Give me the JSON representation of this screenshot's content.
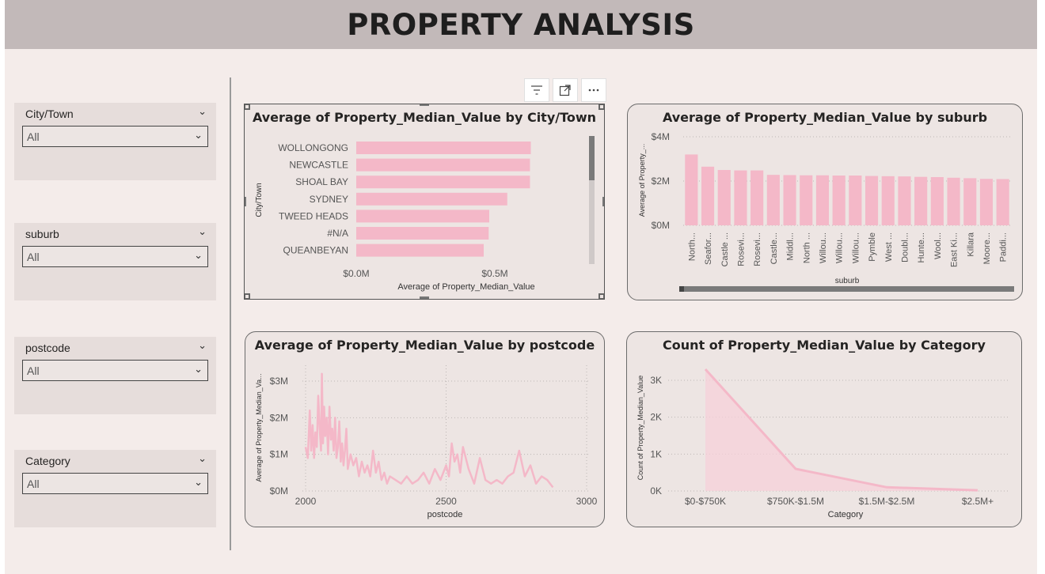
{
  "header": {
    "title": "PROPERTY ANALYSIS"
  },
  "slicers": [
    {
      "label": "City/Town",
      "value": "All"
    },
    {
      "label": "suburb",
      "value": "All"
    },
    {
      "label": "postcode",
      "value": "All"
    },
    {
      "label": "Category",
      "value": "All"
    }
  ],
  "colors": {
    "bar": "#f4b8c8",
    "line": "#f4b8c8",
    "area_fill": "#f5d0da",
    "header_bg": "#c2b9b9",
    "page_bg": "#f4ecea"
  },
  "icons": {
    "filter": "filter-icon",
    "focus": "focus-mode-icon",
    "more": "more-options-icon",
    "chevron": "chevron-down-icon"
  },
  "chart_data": [
    {
      "type": "bar",
      "orientation": "horizontal",
      "title": "Average of Property_Median_Value by City/Town",
      "xlabel": "Average of Property_Median_Value",
      "ylabel": "City/Town",
      "categories": [
        "WOLLONGONG",
        "NEWCASTLE",
        "SHOAL BAY",
        "SYDNEY",
        "TWEED HEADS",
        "#N/A",
        "QUEANBEYAN"
      ],
      "values": [
        630000,
        627000,
        627000,
        545000,
        480000,
        478000,
        460000
      ],
      "xticks": [
        "$0.0M",
        "$0.5M"
      ],
      "xlim": [
        0,
        800000
      ]
    },
    {
      "type": "bar",
      "title": "Average of Property_Median_Value by suburb",
      "xlabel": "suburb",
      "ylabel": "Average of Property_...",
      "categories": [
        "North...",
        "Seafor...",
        "Castle ...",
        "Rosevi...",
        "Rosevi...",
        "Castle...",
        "Middl...",
        "North ...",
        "Willou...",
        "Willou...",
        "Willou...",
        "Pymble",
        "West ...",
        "Doubl...",
        "Hunte...",
        "Wool...",
        "East Ki...",
        "Killara",
        "Moore...",
        "Paddi..."
      ],
      "values": [
        3200000,
        2650000,
        2500000,
        2480000,
        2480000,
        2280000,
        2270000,
        2260000,
        2260000,
        2250000,
        2250000,
        2230000,
        2220000,
        2210000,
        2190000,
        2180000,
        2150000,
        2130000,
        2100000,
        2090000
      ],
      "yticks": [
        "$0M",
        "$2M",
        "$4M"
      ],
      "ylim": [
        0,
        4000000
      ]
    },
    {
      "type": "line",
      "title": "Average of Property_Median_Value by postcode",
      "xlabel": "postcode",
      "ylabel": "Average of Property_Median_Va...",
      "x": [
        2000,
        2008,
        2015,
        2020,
        2025,
        2030,
        2035,
        2040,
        2045,
        2050,
        2055,
        2058,
        2062,
        2066,
        2070,
        2075,
        2080,
        2085,
        2090,
        2095,
        2100,
        2105,
        2110,
        2115,
        2120,
        2125,
        2130,
        2135,
        2140,
        2145,
        2150,
        2160,
        2170,
        2180,
        2190,
        2200,
        2210,
        2220,
        2230,
        2240,
        2250,
        2260,
        2270,
        2280,
        2290,
        2300,
        2320,
        2340,
        2360,
        2380,
        2400,
        2420,
        2440,
        2460,
        2480,
        2500,
        2510,
        2520,
        2530,
        2540,
        2550,
        2560,
        2580,
        2600,
        2620,
        2640,
        2660,
        2680,
        2700,
        2720,
        2740,
        2760,
        2780,
        2800,
        2820,
        2840,
        2860,
        2880
      ],
      "values": [
        1200000,
        900000,
        2200000,
        1100000,
        1800000,
        900000,
        1600000,
        1200000,
        2600000,
        1700000,
        1100000,
        3200000,
        1300000,
        2300000,
        1500000,
        2000000,
        1000000,
        2300000,
        1400000,
        1700000,
        1100000,
        2000000,
        900000,
        1200000,
        1900000,
        800000,
        1300000,
        700000,
        1100000,
        1700000,
        600000,
        1000000,
        700000,
        900000,
        400000,
        800000,
        500000,
        700000,
        400000,
        1100000,
        500000,
        800000,
        300000,
        500000,
        200000,
        400000,
        300000,
        200000,
        400000,
        200000,
        300000,
        500000,
        200000,
        600000,
        300000,
        700000,
        400000,
        1300000,
        800000,
        1000000,
        500000,
        1200000,
        600000,
        200000,
        900000,
        300000,
        200000,
        300000,
        200000,
        400000,
        500000,
        1100000,
        400000,
        700000,
        200000,
        400000,
        300000,
        100000
      ],
      "yticks": [
        "$0M",
        "$1M",
        "$2M",
        "$3M"
      ],
      "xticks": [
        "2000",
        "2500",
        "3000"
      ],
      "ylim": [
        0,
        3500000
      ],
      "xlim": [
        2000,
        3000
      ]
    },
    {
      "type": "area",
      "title": "Count of Property_Median_Value by Category",
      "xlabel": "Category",
      "ylabel": "Count of Property_Median_Value",
      "categories": [
        "$0-$750K",
        "$750K-$1.5M",
        "$1.5M-$2.5M",
        "$2.5M+"
      ],
      "values": [
        3300,
        600,
        100,
        20
      ],
      "yticks": [
        "0K",
        "1K",
        "2K",
        "3K"
      ],
      "ylim": [
        0,
        3500
      ]
    }
  ]
}
